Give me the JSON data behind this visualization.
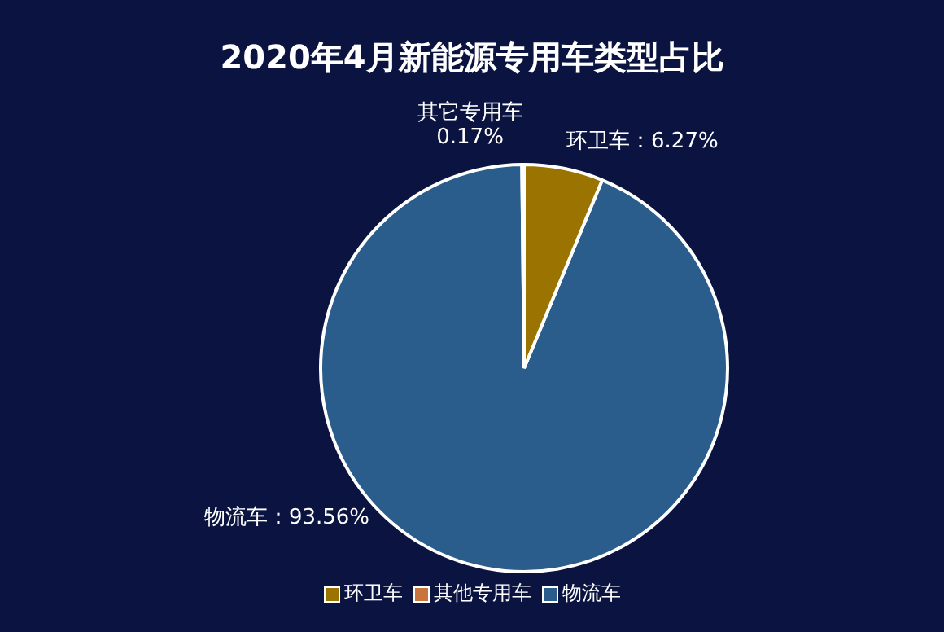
{
  "chart_data": {
    "type": "pie",
    "title": "2020年4月新能源专用车类型占比",
    "categories": [
      "环卫车",
      "其他专用车",
      "物流车"
    ],
    "values": [
      6.27,
      0.17,
      93.56
    ],
    "colors": [
      "#9a7300",
      "#c8743c",
      "#2a5d8c"
    ],
    "value_labels": [
      "环卫车：6.27%",
      "其它专用车\n0.17%",
      "物流车：93.56%"
    ],
    "legend": "bottom"
  }
}
